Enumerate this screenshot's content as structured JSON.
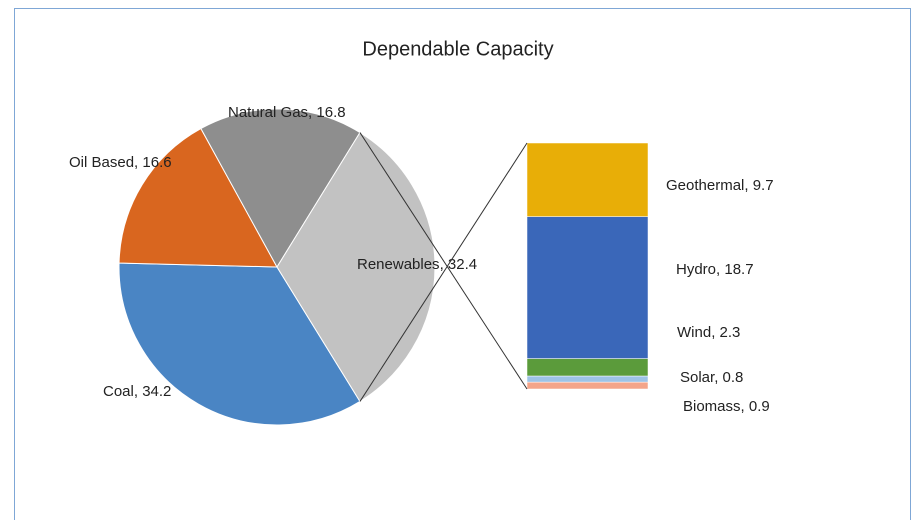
{
  "chart_data": {
    "type": "pie-of-bar",
    "title": "Dependable Capacity",
    "categories": [
      "Coal",
      "Oil Based",
      "Natural Gas",
      "Renewables"
    ],
    "values": [
      34.2,
      16.6,
      16.8,
      32.4
    ],
    "colors": [
      "#4a85c4",
      "#d9661f",
      "#8e8e8e",
      "#c2c2c2"
    ],
    "breakdown": {
      "categories": [
        "Geothermal",
        "Hydro",
        "Wind",
        "Solar",
        "Biomass"
      ],
      "values": [
        9.7,
        18.7,
        2.3,
        0.8,
        0.9
      ],
      "colors": [
        "#e8ae07",
        "#3a67b9",
        "#5b9b3b",
        "#9dc3e6",
        "#f4a58a"
      ]
    }
  }
}
